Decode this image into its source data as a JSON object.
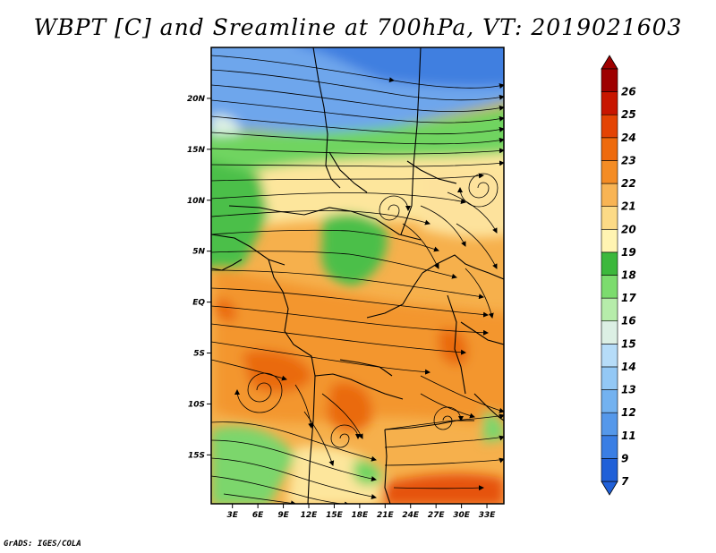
{
  "title": "WBPT [C] and Sreamline at 700hPa, VT: 2019021603",
  "credit": "GrADS: IGES/COLA",
  "map": {
    "lat_labels": [
      "20N",
      "15N",
      "10N",
      "5N",
      "EQ",
      "5S",
      "10S",
      "15S"
    ],
    "lat_values": [
      20,
      15,
      10,
      5,
      0,
      -5,
      -10,
      -15
    ],
    "lon_labels": [
      "3E",
      "6E",
      "9E",
      "12E",
      "15E",
      "18E",
      "21E",
      "24E",
      "27E",
      "30E",
      "33E"
    ],
    "lon_values": [
      3,
      6,
      9,
      12,
      15,
      18,
      21,
      24,
      27,
      30,
      33
    ],
    "lon_range": [
      0.5,
      35
    ],
    "lat_range": [
      -19.8,
      25
    ]
  },
  "colorbar": {
    "labels": [
      "7",
      "9",
      "11",
      "12",
      "13",
      "14",
      "15",
      "16",
      "17",
      "18",
      "19",
      "20",
      "21",
      "22",
      "23",
      "24",
      "25",
      "26"
    ],
    "colors": [
      "#2060d8",
      "#3a7ee4",
      "#5598ea",
      "#73b2f0",
      "#93c8f5",
      "#b6dcf8",
      "#dcefe4",
      "#b6ecaa",
      "#7cdc6e",
      "#3cb83c",
      "#fff4b2",
      "#fcda86",
      "#f8b454",
      "#f48c24",
      "#ee6a0c",
      "#e44404",
      "#c81600",
      "#9e0000"
    ],
    "low_color": "#2060d8",
    "high_color": "#9e0000"
  }
}
